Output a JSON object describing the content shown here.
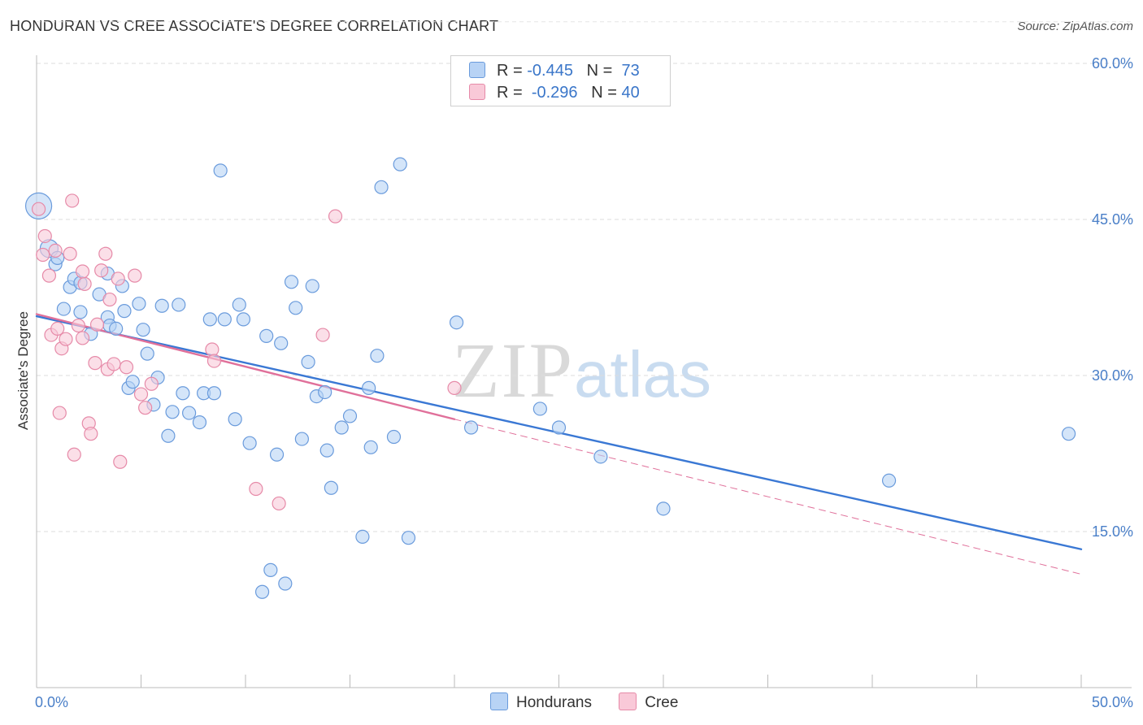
{
  "header": {
    "title": "HONDURAN VS CREE ASSOCIATE'S DEGREE CORRELATION CHART",
    "source": "Source: ZipAtlas.com"
  },
  "watermark": {
    "zip": "ZIP",
    "atlas": "atlas"
  },
  "legend": {
    "rows": [
      {
        "r_label": "R =",
        "r_value": "-0.445",
        "n_label": "N =",
        "n_value": "73",
        "color": "#b8d3f5",
        "border": "#6a9bdc"
      },
      {
        "r_label": "R =",
        "r_value": "-0.296",
        "n_label": "N =",
        "n_value": "40",
        "color": "#f9c9d8",
        "border": "#e68aa8"
      }
    ]
  },
  "bottom_legend": [
    {
      "label": "Hondurans",
      "color": "#b8d3f5",
      "border": "#6a9bdc"
    },
    {
      "label": "Cree",
      "color": "#f9c9d8",
      "border": "#e68aa8"
    }
  ],
  "chart_data": {
    "type": "scatter",
    "title": "HONDURAN VS CREE ASSOCIATE'S DEGREE CORRELATION CHART",
    "xlabel": "",
    "ylabel": "Associate's Degree",
    "xlim": [
      0,
      50
    ],
    "ylim": [
      0,
      64
    ],
    "x_tick_labels": [
      {
        "value": 0,
        "label": "0.0%"
      },
      {
        "value": 50,
        "label": "50.0%"
      }
    ],
    "y_tick_labels": [
      {
        "value": 15,
        "label": "15.0%"
      },
      {
        "value": 30,
        "label": "30.0%"
      },
      {
        "value": 45,
        "label": "45.0%"
      },
      {
        "value": 60,
        "label": "60.0%"
      }
    ],
    "x_minor_ticks": [
      0,
      5,
      10,
      15,
      20,
      25,
      30,
      35,
      40,
      45,
      50
    ],
    "colors": {
      "blue": "#3a78d4",
      "blue_fill": "#b8d3f5",
      "pink": "#e0709a",
      "pink_fill": "#f9c9d8"
    },
    "series": [
      {
        "name": "Hondurans",
        "points": [
          [
            0.1,
            46.3
          ],
          [
            0.6,
            42.2
          ],
          [
            0.9,
            40.7
          ],
          [
            1.0,
            41.3
          ],
          [
            1.3,
            36.4
          ],
          [
            1.6,
            38.5
          ],
          [
            1.8,
            39.3
          ],
          [
            2.1,
            36.1
          ],
          [
            2.6,
            34.0
          ],
          [
            3.0,
            37.8
          ],
          [
            3.4,
            35.6
          ],
          [
            3.5,
            34.8
          ],
          [
            3.8,
            34.5
          ],
          [
            4.1,
            38.6
          ],
          [
            4.4,
            28.8
          ],
          [
            4.6,
            29.4
          ],
          [
            4.9,
            36.9
          ],
          [
            5.1,
            34.4
          ],
          [
            5.3,
            32.1
          ],
          [
            5.6,
            27.2
          ],
          [
            5.8,
            29.8
          ],
          [
            6.0,
            36.7
          ],
          [
            6.3,
            24.2
          ],
          [
            6.5,
            26.5
          ],
          [
            6.8,
            36.8
          ],
          [
            7.0,
            28.3
          ],
          [
            7.3,
            26.4
          ],
          [
            7.8,
            25.5
          ],
          [
            8.0,
            28.3
          ],
          [
            8.3,
            35.4
          ],
          [
            8.5,
            28.3
          ],
          [
            8.8,
            49.7
          ],
          [
            9.0,
            35.4
          ],
          [
            9.5,
            25.8
          ],
          [
            9.7,
            36.8
          ],
          [
            9.9,
            35.4
          ],
          [
            10.2,
            23.5
          ],
          [
            10.8,
            9.2
          ],
          [
            11.0,
            33.8
          ],
          [
            11.2,
            11.3
          ],
          [
            11.5,
            22.4
          ],
          [
            11.7,
            33.1
          ],
          [
            11.9,
            10.0
          ],
          [
            12.2,
            39.0
          ],
          [
            12.4,
            36.5
          ],
          [
            12.7,
            23.9
          ],
          [
            13.0,
            31.3
          ],
          [
            13.2,
            38.6
          ],
          [
            13.4,
            28.0
          ],
          [
            13.8,
            28.4
          ],
          [
            13.9,
            22.8
          ],
          [
            14.1,
            19.2
          ],
          [
            14.6,
            25.0
          ],
          [
            15.0,
            26.1
          ],
          [
            15.6,
            14.5
          ],
          [
            15.9,
            28.8
          ],
          [
            16.0,
            23.1
          ],
          [
            16.3,
            31.9
          ],
          [
            16.5,
            48.1
          ],
          [
            17.1,
            24.1
          ],
          [
            17.4,
            50.3
          ],
          [
            17.8,
            14.4
          ],
          [
            20.1,
            35.1
          ],
          [
            20.8,
            25.0
          ],
          [
            3.4,
            39.8
          ],
          [
            2.1,
            38.9
          ],
          [
            4.2,
            36.2
          ],
          [
            24.1,
            26.8
          ],
          [
            25.0,
            25.0
          ],
          [
            27.0,
            22.2
          ],
          [
            30.0,
            17.2
          ],
          [
            40.8,
            19.9
          ],
          [
            49.4,
            24.4
          ]
        ]
      },
      {
        "name": "Cree",
        "points": [
          [
            0.1,
            46.0
          ],
          [
            0.3,
            41.6
          ],
          [
            0.4,
            43.4
          ],
          [
            0.6,
            39.6
          ],
          [
            0.7,
            33.9
          ],
          [
            0.9,
            42.0
          ],
          [
            1.0,
            34.5
          ],
          [
            1.1,
            26.4
          ],
          [
            1.2,
            32.6
          ],
          [
            1.4,
            33.5
          ],
          [
            1.6,
            41.7
          ],
          [
            1.7,
            46.8
          ],
          [
            1.8,
            22.4
          ],
          [
            2.0,
            34.8
          ],
          [
            2.2,
            33.6
          ],
          [
            2.3,
            38.8
          ],
          [
            2.5,
            25.4
          ],
          [
            2.6,
            24.4
          ],
          [
            2.8,
            31.2
          ],
          [
            2.9,
            34.9
          ],
          [
            3.1,
            40.1
          ],
          [
            3.3,
            41.7
          ],
          [
            3.4,
            30.6
          ],
          [
            3.5,
            37.3
          ],
          [
            3.7,
            31.1
          ],
          [
            3.9,
            39.3
          ],
          [
            4.0,
            21.7
          ],
          [
            4.3,
            30.8
          ],
          [
            4.7,
            39.6
          ],
          [
            5.0,
            28.2
          ],
          [
            5.2,
            26.9
          ],
          [
            5.5,
            29.2
          ],
          [
            8.4,
            32.5
          ],
          [
            8.5,
            31.4
          ],
          [
            10.5,
            19.1
          ],
          [
            11.6,
            17.7
          ],
          [
            13.7,
            33.9
          ],
          [
            14.3,
            45.3
          ],
          [
            20.0,
            28.8
          ],
          [
            2.2,
            40.0
          ]
        ]
      }
    ],
    "trend_lines": [
      {
        "series": "Hondurans",
        "style": "solid",
        "from": [
          0,
          35.7
        ],
        "to": [
          50,
          13.3
        ]
      },
      {
        "series": "Cree",
        "style": "solid",
        "from": [
          0,
          35.9
        ],
        "to": [
          20,
          25.8
        ]
      },
      {
        "series": "Cree",
        "style": "dashed",
        "from": [
          20,
          25.8
        ],
        "to": [
          50,
          10.9
        ]
      }
    ],
    "large_points": [
      {
        "series": "Hondurans",
        "x": 0.1,
        "y": 46.3
      },
      {
        "series": "Hondurans",
        "x": 0.6,
        "y": 42.2
      }
    ]
  }
}
